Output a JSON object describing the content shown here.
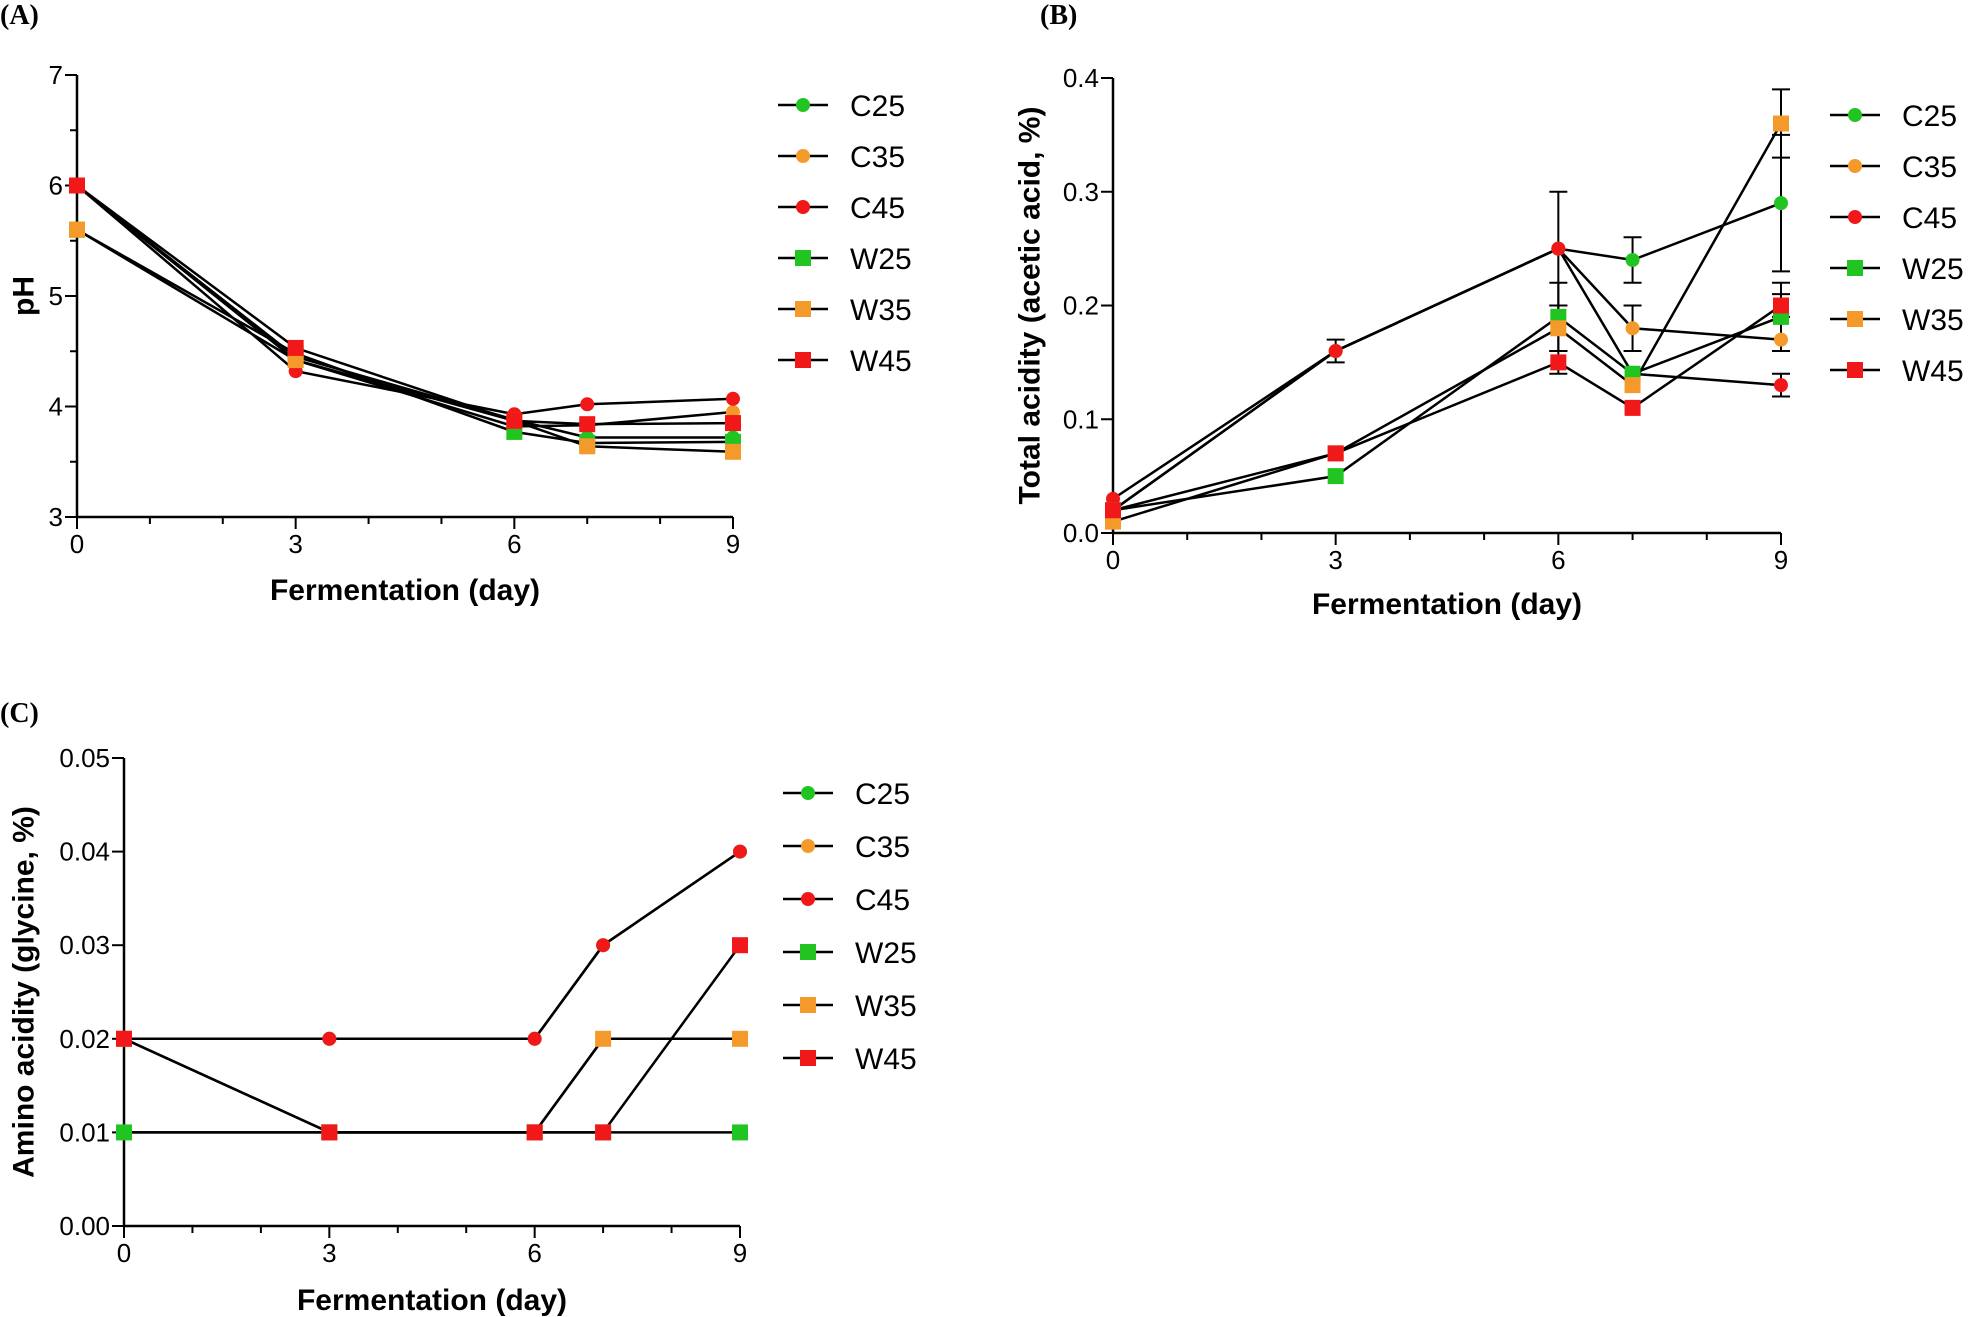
{
  "figure_colors": {
    "C25": "#22c422",
    "C35": "#f39a2b",
    "C45": "#f01818",
    "W25": "#22c422",
    "W35": "#f39a2b",
    "W45": "#f01818"
  },
  "chart_data": [
    {
      "panel_label": "(A)",
      "type": "line",
      "xlabel": "Fermentation (day)",
      "ylabel": "pH",
      "xlim": [
        0,
        9
      ],
      "ylim": [
        3,
        7
      ],
      "xticks": [
        0,
        3,
        6,
        9
      ],
      "yticks": [
        3,
        4,
        5,
        6,
        7
      ],
      "x": [
        0,
        3,
        6,
        7,
        9
      ],
      "series": [
        {
          "name": "C25",
          "marker": "circle",
          "values": [
            6.0,
            4.45,
            3.88,
            3.72,
            3.72
          ]
        },
        {
          "name": "C35",
          "marker": "circle",
          "values": [
            6.0,
            4.42,
            3.82,
            3.83,
            3.95
          ]
        },
        {
          "name": "C45",
          "marker": "circle",
          "values": [
            6.0,
            4.32,
            3.93,
            4.02,
            4.07
          ]
        },
        {
          "name": "W25",
          "marker": "square",
          "values": [
            5.6,
            4.48,
            3.77,
            3.67,
            3.68
          ]
        },
        {
          "name": "W35",
          "marker": "square",
          "values": [
            5.6,
            4.42,
            3.87,
            3.64,
            3.59
          ]
        },
        {
          "name": "W45",
          "marker": "square",
          "values": [
            6.0,
            4.53,
            3.87,
            3.84,
            3.85
          ]
        }
      ]
    },
    {
      "panel_label": "(B)",
      "type": "line",
      "xlabel": "Fermentation (day)",
      "ylabel": "Total acidity (acetic acid, %)",
      "xlim": [
        0,
        9
      ],
      "ylim": [
        0,
        0.4
      ],
      "xticks": [
        0,
        3,
        6,
        9
      ],
      "yticks": [
        0.0,
        0.1,
        0.2,
        0.3,
        0.4
      ],
      "ytick_labels": [
        "0.0",
        "0.1",
        "0.2",
        "0.3",
        "0.4"
      ],
      "x": [
        0,
        3,
        6,
        7,
        9
      ],
      "series": [
        {
          "name": "C25",
          "marker": "circle",
          "values": [
            0.02,
            0.16,
            0.25,
            0.24,
            0.29
          ],
          "errors": [
            0,
            0,
            0,
            0.02,
            0.06
          ]
        },
        {
          "name": "C35",
          "marker": "circle",
          "values": [
            0.02,
            0.16,
            0.25,
            0.18,
            0.17
          ],
          "errors": [
            0,
            0,
            0,
            0.02,
            0
          ]
        },
        {
          "name": "C45",
          "marker": "circle",
          "values": [
            0.03,
            0.16,
            0.25,
            0.14,
            0.13
          ],
          "errors": [
            0,
            0.01,
            0.05,
            0,
            0.01
          ]
        },
        {
          "name": "W25",
          "marker": "square",
          "values": [
            0.02,
            0.05,
            0.19,
            0.14,
            0.19
          ],
          "errors": [
            0,
            0,
            0.03,
            0,
            0.03
          ]
        },
        {
          "name": "W35",
          "marker": "square",
          "values": [
            0.01,
            0.07,
            0.18,
            0.13,
            0.36
          ],
          "errors": [
            0,
            0,
            0.02,
            0,
            0.03
          ]
        },
        {
          "name": "W45",
          "marker": "square",
          "values": [
            0.02,
            0.07,
            0.15,
            0.11,
            0.2
          ],
          "errors": [
            0,
            0,
            0.01,
            0,
            0.01
          ]
        }
      ]
    },
    {
      "panel_label": "(C)",
      "type": "line",
      "xlabel": "Fermentation (day)",
      "ylabel": "Amino acidity (glycine, %)",
      "xlim": [
        0,
        9
      ],
      "ylim": [
        0,
        0.05
      ],
      "xticks": [
        0,
        3,
        6,
        9
      ],
      "yticks": [
        0.0,
        0.01,
        0.02,
        0.03,
        0.04,
        0.05
      ],
      "ytick_labels": [
        "0.00",
        "0.01",
        "0.02",
        "0.03",
        "0.04",
        "0.05"
      ],
      "x": [
        0,
        3,
        6,
        7,
        9
      ],
      "series": [
        {
          "name": "C25",
          "marker": "circle",
          "values": [
            0.02,
            0.02,
            0.02,
            0.03,
            0.04
          ]
        },
        {
          "name": "C35",
          "marker": "circle",
          "values": [
            0.01,
            0.01,
            0.01,
            0.02,
            0.02
          ]
        },
        {
          "name": "C45",
          "marker": "circle",
          "values": [
            0.02,
            0.02,
            0.02,
            0.03,
            0.04
          ]
        },
        {
          "name": "W25",
          "marker": "square",
          "values": [
            0.01,
            0.01,
            0.01,
            0.01,
            0.01
          ]
        },
        {
          "name": "W35",
          "marker": "square",
          "values": [
            0.02,
            0.01,
            0.01,
            0.02,
            0.02
          ]
        },
        {
          "name": "W45",
          "marker": "square",
          "values": [
            0.02,
            0.01,
            0.01,
            0.01,
            0.03
          ]
        }
      ]
    }
  ]
}
